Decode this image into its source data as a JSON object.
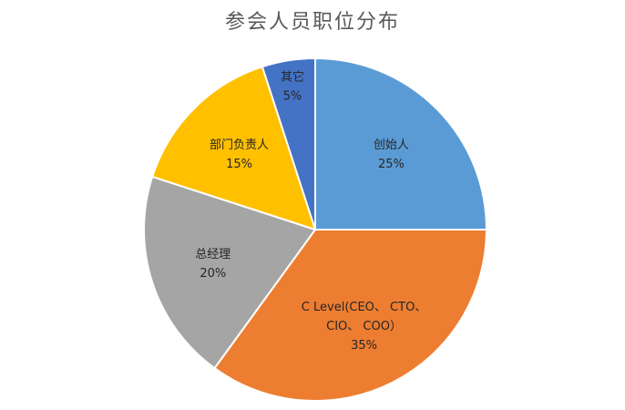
{
  "chart_data": {
    "type": "pie",
    "title": "参会人员职位分布",
    "categories": [
      "创始人",
      "C Level(CEO、 CTO、 CIO、 COO）",
      "总经理",
      "部门负责人",
      "其它"
    ],
    "values": [
      25,
      35,
      20,
      15,
      5
    ],
    "slices": [
      {
        "name": "创始人",
        "label_lines": [
          "创始人"
        ],
        "percent_label": "25%",
        "value": 25,
        "color": "#5B9BD5"
      },
      {
        "name": "C Level(CEO、 CTO、 CIO、 COO）",
        "label_lines": [
          "C Level(CEO、 CTO、",
          "CIO、 COO）"
        ],
        "percent_label": "35%",
        "value": 35,
        "color": "#ED7D31"
      },
      {
        "name": "总经理",
        "label_lines": [
          "总经理"
        ],
        "percent_label": "20%",
        "value": 20,
        "color": "#A5A5A5"
      },
      {
        "name": "部门负责人",
        "label_lines": [
          "部门负责人"
        ],
        "percent_label": "15%",
        "value": 15,
        "color": "#FFC000"
      },
      {
        "name": "其它",
        "label_lines": [
          "其它"
        ],
        "percent_label": "5%",
        "value": 5,
        "color": "#4472C4"
      }
    ],
    "start_position": "12 o'clock",
    "direction": "clockwise",
    "legend": "none",
    "data_labels": "inside"
  }
}
